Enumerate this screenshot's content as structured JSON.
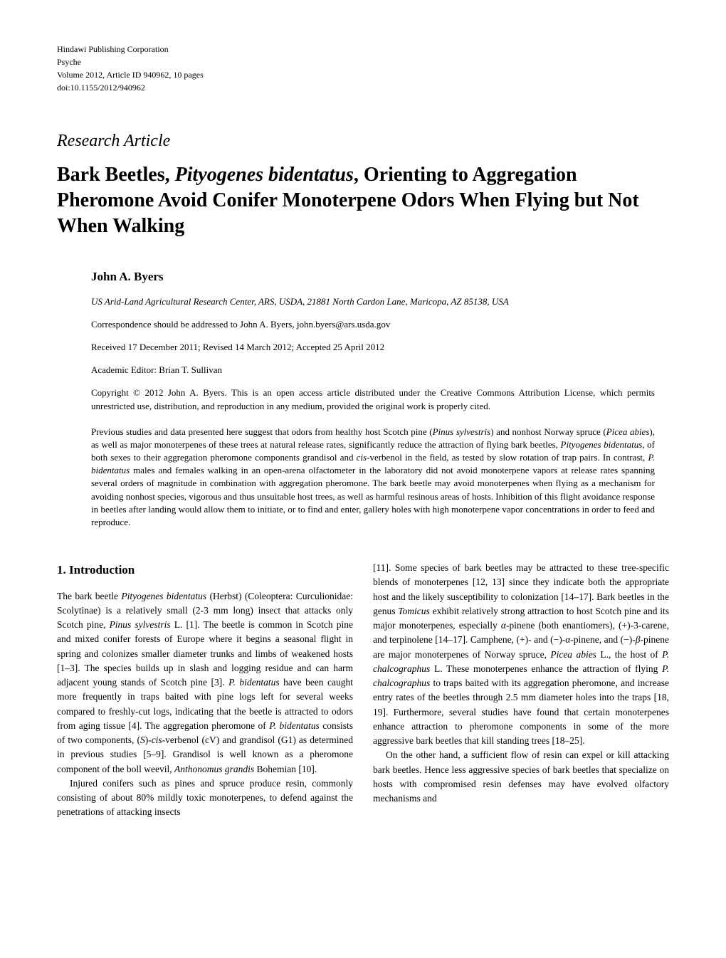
{
  "header": {
    "publisher": "Hindawi Publishing Corporation",
    "journal": "Psyche",
    "volume_info": "Volume 2012, Article ID 940962, 10 pages",
    "doi": "doi:10.1155/2012/940962"
  },
  "article_type": "Research Article",
  "title": {
    "part1": "Bark Beetles, ",
    "part2_italic": "Pityogenes bidentatus",
    "part3": ", Orienting to Aggregation Pheromone Avoid Conifer Monoterpene Odors When Flying but Not When Walking"
  },
  "author": "John A. Byers",
  "affiliation": "US Arid-Land Agricultural Research Center, ARS, USDA, 21881 North Cardon Lane, Maricopa, AZ 85138, USA",
  "correspondence": "Correspondence should be addressed to John A. Byers, john.byers@ars.usda.gov",
  "dates": "Received 17 December 2011; Revised 14 March 2012; Accepted 25 April 2012",
  "editor": "Academic Editor: Brian T. Sullivan",
  "copyright": "Copyright © 2012 John A. Byers. This is an open access article distributed under the Creative Commons Attribution License, which permits unrestricted use, distribution, and reproduction in any medium, provided the original work is properly cited.",
  "abstract": "Previous studies and data presented here suggest that odors from healthy host Scotch pine (<em>Pinus sylvestris</em>) and nonhost Norway spruce (<em>Picea abies</em>), as well as major monoterpenes of these trees at natural release rates, significantly reduce the attraction of flying bark beetles, <em>Pityogenes bidentatus</em>, of both sexes to their aggregation pheromone components grandisol and <em>cis</em>-verbenol in the field, as tested by slow rotation of trap pairs. In contrast, <em>P. bidentatus</em> males and females walking in an open-arena olfactometer in the laboratory did not avoid monoterpene vapors at release rates spanning several orders of magnitude in combination with aggregation pheromone. The bark beetle may avoid monoterpenes when flying as a mechanism for avoiding nonhost species, vigorous and thus unsuitable host trees, as well as harmful resinous areas of hosts. Inhibition of this flight avoidance response in beetles after landing would allow them to initiate, or to find and enter, gallery holes with high monoterpene vapor concentrations in order to feed and reproduce.",
  "section_heading": "1. Introduction",
  "body": {
    "left_p1": "The bark beetle <em>Pityogenes bidentatus</em> (Herbst) (Coleoptera: Curculionidae: Scolytinae) is a relatively small (2-3 mm long) insect that attacks only Scotch pine, <em>Pinus sylvestris</em> L. [1]. The beetle is common in Scotch pine and mixed conifer forests of Europe where it begins a seasonal flight in spring and colonizes smaller diameter trunks and limbs of weakened hosts [1–3]. The species builds up in slash and logging residue and can harm adjacent young stands of Scotch pine [3]. <em>P. bidentatus</em> have been caught more frequently in traps baited with pine logs left for several weeks compared to freshly-cut logs, indicating that the beetle is attracted to odors from aging tissue [4]. The aggregation pheromone of <em>P. bidentatus</em> consists of two components, (<em>S</em>)-<em>cis</em>-verbenol (cV) and grandisol (G1) as determined in previous studies [5–9]. Grandisol is well known as a pheromone component of the boll weevil, <em>Anthonomus grandis</em> Bohemian [10].",
    "left_p2": "Injured conifers such as pines and spruce produce resin, commonly consisting of about 80% mildly toxic monoterpenes, to defend against the penetrations of attacking insects",
    "right_p1": "[11]. Some species of bark beetles may be attracted to these tree-specific blends of monoterpenes [12, 13] since they indicate both the appropriate host and the likely susceptibility to colonization [14–17]. Bark beetles in the genus <em>Tomicus</em> exhibit relatively strong attraction to host Scotch pine and its major monoterpenes, especially <em>α</em>-pinene (both enantiomers), (+)-3-carene, and terpinolene [14–17]. Camphene, (+)- and (−)-<em>α</em>-pinene, and (−)-<em>β</em>-pinene are major monoterpenes of Norway spruce, <em>Picea abies</em> L., the host of <em>P. chalcographus</em> L. These monoterpenes enhance the attraction of flying <em>P. chalcographus</em> to traps baited with its aggregation pheromone, and increase entry rates of the beetles through 2.5 mm diameter holes into the traps [18, 19]. Furthermore, several studies have found that certain monoterpenes enhance attraction to pheromone components in some of the more aggressive bark beetles that kill standing trees [18–25].",
    "right_p2": "On the other hand, a sufficient flow of resin can expel or kill attacking bark beetles. Hence less aggressive species of bark beetles that specialize on hosts with compromised resin defenses may have evolved olfactory mechanisms and"
  }
}
